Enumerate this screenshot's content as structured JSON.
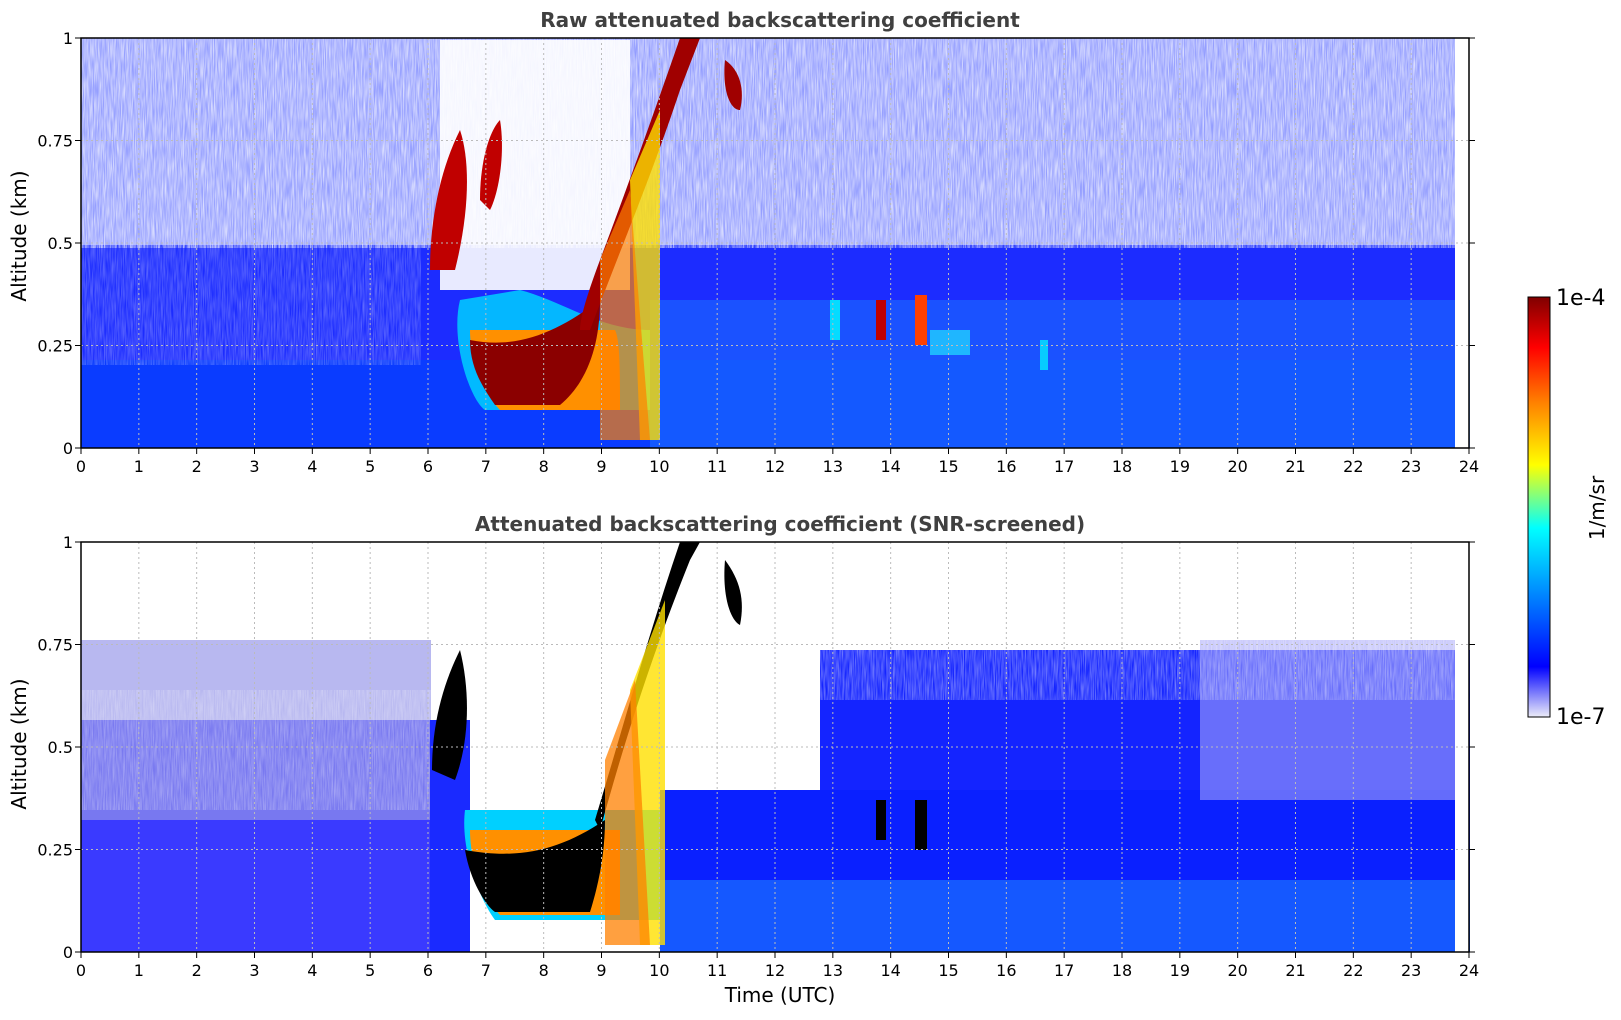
{
  "chart_data": [
    {
      "type": "heatmap",
      "title": "Raw attenuated backscattering coefficient",
      "xlabel": "",
      "ylabel": "Altitude (km)",
      "xlim": [
        0,
        24
      ],
      "ylim": [
        0,
        1
      ],
      "xticks": [
        "0",
        "1",
        "2",
        "3",
        "4",
        "5",
        "6",
        "7",
        "8",
        "9",
        "10",
        "11",
        "12",
        "13",
        "14",
        "15",
        "16",
        "17",
        "18",
        "19",
        "20",
        "21",
        "22",
        "23",
        "24"
      ],
      "yticks": [
        "0",
        "0.25",
        "0.5",
        "0.75",
        "1"
      ],
      "grid": true,
      "color_scale": "log",
      "data_end_time_utc": 23.8,
      "features": [
        {
          "name": "convective cloud band",
          "x_range": [
            6.1,
            10.7
          ],
          "y_range": [
            0.08,
            1.0
          ],
          "value": "1e-4"
        },
        {
          "name": "upper cloud patch",
          "x_range": [
            11.0,
            11.5
          ],
          "y_range": [
            0.8,
            0.95
          ],
          "value": "1e-4"
        },
        {
          "name": "low cloud patches",
          "x_range": [
            13.0,
            15.5
          ],
          "y_range": [
            0.2,
            0.35
          ],
          "value": "high"
        }
      ]
    },
    {
      "type": "heatmap",
      "title": "Attenuated backscattering coefficient (SNR-screened)",
      "xlabel": "Time (UTC)",
      "ylabel": "Altitude (km)",
      "xlim": [
        0,
        24
      ],
      "ylim": [
        0,
        1
      ],
      "xticks": [
        "0",
        "1",
        "2",
        "3",
        "4",
        "5",
        "6",
        "7",
        "8",
        "9",
        "10",
        "11",
        "12",
        "13",
        "14",
        "15",
        "16",
        "17",
        "18",
        "19",
        "20",
        "21",
        "22",
        "23",
        "24"
      ],
      "yticks": [
        "0",
        "0.25",
        "0.5",
        "0.75",
        "1"
      ],
      "grid": true,
      "color_scale": "log",
      "data_end_time_utc": 23.8,
      "features": [
        {
          "name": "screened boundary layer top",
          "x_range": [
            0,
            6
          ],
          "y_range": [
            0,
            0.6
          ]
        },
        {
          "name": "saturated cloud core",
          "x_range": [
            6.5,
            10.7
          ],
          "y_range": [
            0.07,
            1.0
          ],
          "value": "> 1e-4"
        }
      ]
    }
  ],
  "colorbar": {
    "label": "1/m/sr",
    "max_label": "1e-4",
    "min_label": "1e-7",
    "colormap": "jet",
    "stops": [
      "#ececf8",
      "#0000ff",
      "#00b4ff",
      "#00ffff",
      "#ffff00",
      "#ff8000",
      "#ff0000",
      "#800000"
    ]
  }
}
